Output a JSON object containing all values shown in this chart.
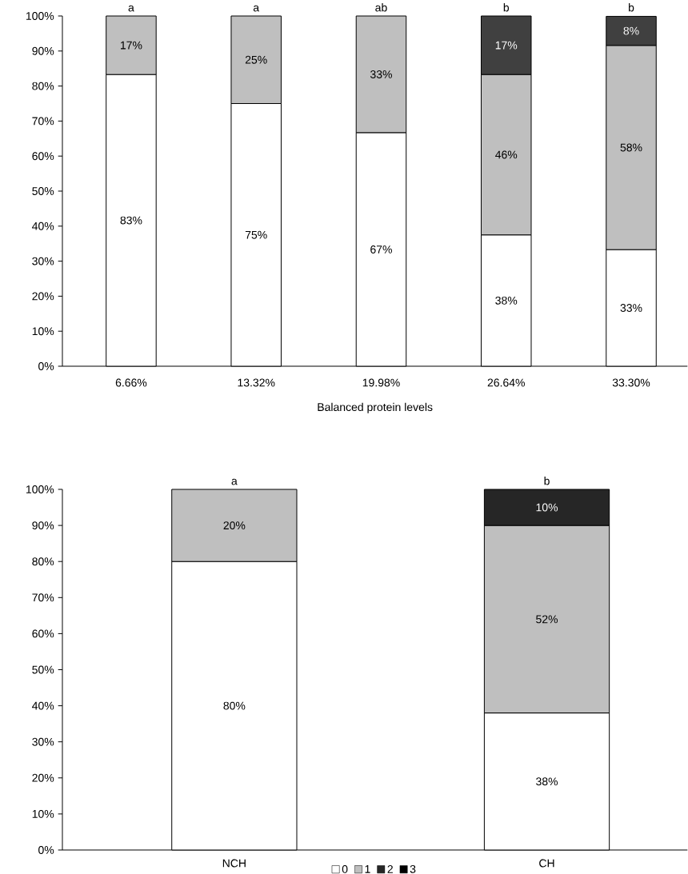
{
  "chart_data": [
    {
      "type": "bar",
      "stacked": true,
      "xlabel": "Balanced protein levels",
      "categories": [
        "6.66%",
        "13.32%",
        "19.98%",
        "26.64%",
        "33.30%"
      ],
      "series": [
        {
          "color": "#ffffff",
          "values": [
            83.3,
            75,
            66.7,
            37.5,
            33.3
          ],
          "value_labels": [
            "83%",
            "75%",
            "67%",
            "38%",
            "33%"
          ]
        },
        {
          "color": "#bfbfbf",
          "values": [
            16.7,
            25,
            33.3,
            45.8,
            58.3
          ],
          "value_labels": [
            "17%",
            "25%",
            "33%",
            "46%",
            "58%"
          ]
        },
        {
          "color": "#404040",
          "values": [
            null,
            null,
            null,
            16.7,
            8.3
          ],
          "value_labels": [
            null,
            null,
            null,
            "17%",
            "8%"
          ]
        }
      ],
      "ylim": [
        0,
        100
      ],
      "yticks": [
        {
          "value": 0,
          "label": "0%"
        },
        {
          "value": 10,
          "label": "10%"
        },
        {
          "value": 20,
          "label": "20%"
        },
        {
          "value": 30,
          "label": "30%"
        },
        {
          "value": 40,
          "label": "40%"
        },
        {
          "value": 50,
          "label": "50%"
        },
        {
          "value": 60,
          "label": "60%"
        },
        {
          "value": 70,
          "label": "70%"
        },
        {
          "value": 80,
          "label": "80%"
        },
        {
          "value": 90,
          "label": "90%"
        },
        {
          "value": 100,
          "label": "100%"
        }
      ],
      "annotations": [
        {
          "text": "a",
          "x": "6.66%",
          "y": 100
        },
        {
          "text": "a",
          "x": "13.32%",
          "y": 100
        },
        {
          "text": "ab",
          "x": "19.98%",
          "y": 100
        },
        {
          "text": "b",
          "x": "26.64%",
          "y": 100
        },
        {
          "text": "b",
          "x": "33.30%",
          "y": 100
        }
      ],
      "legend": false
    },
    {
      "type": "bar",
      "stacked": true,
      "categories": [
        "NCH",
        "CH"
      ],
      "series": [
        {
          "name": "0",
          "color": "#ffffff",
          "values": [
            80,
            38
          ],
          "value_labels": [
            "80%",
            "38%"
          ]
        },
        {
          "name": "1",
          "color": "#bfbfbf",
          "values": [
            20,
            52
          ],
          "value_labels": [
            "20%",
            "52%"
          ]
        },
        {
          "name": "2",
          "color": "#262626",
          "values": [
            null,
            10
          ],
          "value_labels": [
            null,
            "10%"
          ]
        },
        {
          "name": "3",
          "color": "#000000",
          "values": [
            null,
            null
          ],
          "value_labels": [
            null,
            null
          ]
        }
      ],
      "ylim": [
        0,
        100
      ],
      "yticks": [
        {
          "value": 0,
          "label": "0%"
        },
        {
          "value": 10,
          "label": "10%"
        },
        {
          "value": 20,
          "label": "20%"
        },
        {
          "value": 30,
          "label": "30%"
        },
        {
          "value": 40,
          "label": "40%"
        },
        {
          "value": 50,
          "label": "50%"
        },
        {
          "value": 60,
          "label": "60%"
        },
        {
          "value": 70,
          "label": "70%"
        },
        {
          "value": 80,
          "label": "80%"
        },
        {
          "value": 90,
          "label": "90%"
        },
        {
          "value": 100,
          "label": "100%"
        }
      ],
      "annotations": [
        {
          "text": "a",
          "x": "NCH",
          "y": 100
        },
        {
          "text": "b",
          "x": "CH",
          "y": 100
        }
      ],
      "legend": "bottom"
    }
  ]
}
